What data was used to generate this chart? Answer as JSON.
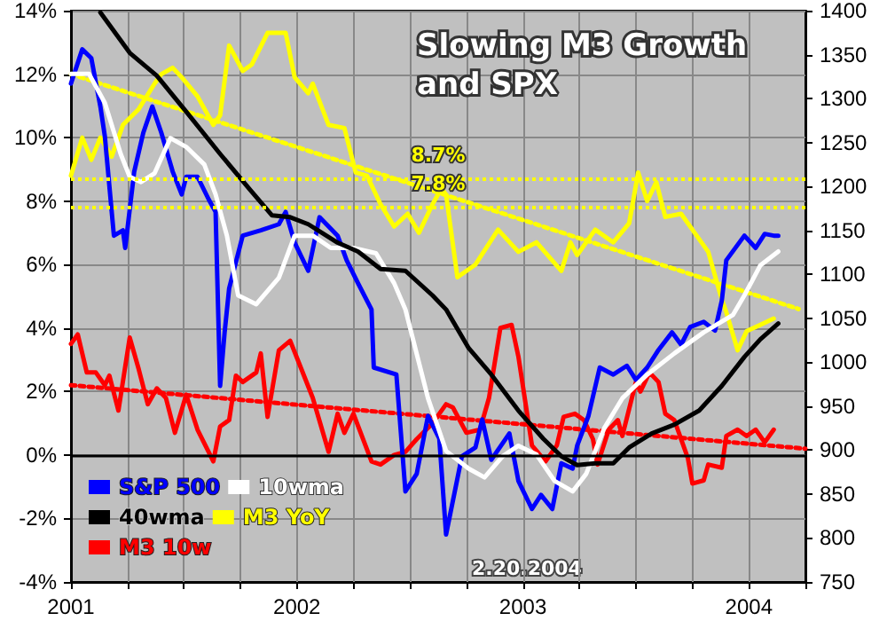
{
  "chart_data": {
    "type": "line",
    "title": "Slowing M3 Growth and SPX",
    "xlim": [
      2001,
      2004.25
    ],
    "xticks": [
      2001,
      {
        "value": 2001.25,
        "label": null
      },
      {
        "value": 2001.5,
        "label": null
      },
      {
        "value": 2001.75,
        "label": null
      },
      2002,
      {
        "value": 2002.25,
        "label": null
      },
      {
        "value": 2002.5,
        "label": null
      },
      {
        "value": 2002.75,
        "label": null
      },
      2003,
      {
        "value": 2003.25,
        "label": null
      },
      {
        "value": 2003.5,
        "label": null
      },
      {
        "value": 2003.75,
        "label": null
      },
      2004,
      {
        "value": 2004.25,
        "label": null
      }
    ],
    "ylim": [
      -4,
      14
    ],
    "yticks": [
      {
        "value": -4,
        "label": "-4%"
      },
      {
        "value": -2,
        "label": "-2%"
      },
      {
        "value": 0,
        "label": "0%"
      },
      {
        "value": 2,
        "label": "2%"
      },
      {
        "value": 4,
        "label": "4%"
      },
      {
        "value": 6,
        "label": "6%"
      },
      {
        "value": 8,
        "label": "8%"
      },
      {
        "value": 10,
        "label": "10%"
      },
      {
        "value": 12,
        "label": "12%"
      },
      {
        "value": 14,
        "label": "14%"
      }
    ],
    "y2lim": [
      750,
      1400
    ],
    "y2ticks": [
      750,
      800,
      850,
      900,
      950,
      1000,
      1050,
      1100,
      1150,
      1200,
      1250,
      1300,
      1350,
      1400
    ],
    "grid": true,
    "legend": "bottom left",
    "marker": "none",
    "line_style": "solid",
    "annotations": [
      "2.20.2004"
    ],
    "ref_lines": [
      {
        "axis": "y",
        "value": 8.7,
        "label": "8.7%",
        "color": "#ffff00",
        "line_style": "dotted"
      },
      {
        "axis": "y",
        "value": 7.8,
        "label": "7.8%",
        "color": "#ffff00",
        "line_style": "dotted"
      },
      {
        "axis": "y",
        "value": 0,
        "label": null,
        "color": "#000000",
        "line_style": "solid"
      }
    ],
    "series": [
      {
        "name": "M3 YoY",
        "color": "#ffff00",
        "x": [
          2001,
          2001.05,
          2001.09,
          2001.13,
          2001.18,
          2001.23,
          2001.3,
          2001.37,
          2001.4,
          2001.45,
          2001.49,
          2001.56,
          2001.63,
          2001.66,
          2001.7,
          2001.76,
          2001.8,
          2001.87,
          2001.95,
          2001.99,
          2002.05,
          2002.07,
          2002.14,
          2002.21,
          2002.26,
          2002.31,
          2002.37,
          2002.43,
          2002.49,
          2002.54,
          2002.6,
          2002.64,
          2002.66,
          2002.71,
          2002.79,
          2002.89,
          2002.98,
          2003.06,
          2003.17,
          2003.21,
          2003.24,
          2003.32,
          2003.4,
          2003.47,
          2003.51,
          2003.55,
          2003.59,
          2003.63,
          2003.7,
          2003.75,
          2003.82,
          2003.88,
          2003.9,
          2003.95,
          2003.99,
          2004.05,
          2004.11
        ],
        "values": [
          8.8,
          10.0,
          9.3,
          10.0,
          9.4,
          10.4,
          10.9,
          11.7,
          12.0,
          12.2,
          11.9,
          11.3,
          10.4,
          10.7,
          12.9,
          12.1,
          12.3,
          13.3,
          13.3,
          11.9,
          11.4,
          11.7,
          10.4,
          10.3,
          8.9,
          8.8,
          7.9,
          7.2,
          7.6,
          7.0,
          7.9,
          8.4,
          8.2,
          5.6,
          6.0,
          7.1,
          6.4,
          6.7,
          5.8,
          6.7,
          6.3,
          7.1,
          6.7,
          7.3,
          8.9,
          8.0,
          8.6,
          7.5,
          7.6,
          7.1,
          6.4,
          4.9,
          4.5,
          3.3,
          3.9,
          4.1,
          4.3
        ]
      },
      {
        "name": "M3 10w",
        "color": "#ff0000",
        "x": [
          2001,
          2001.03,
          2001.07,
          2001.11,
          2001.15,
          2001.17,
          2001.21,
          2001.26,
          2001.3,
          2001.34,
          2001.38,
          2001.42,
          2001.46,
          2001.51,
          2001.56,
          2001.63,
          2001.66,
          2001.7,
          2001.73,
          2001.76,
          2001.82,
          2001.84,
          2001.87,
          2001.92,
          2001.97,
          2002.02,
          2002.07,
          2002.14,
          2002.18,
          2002.21,
          2002.25,
          2002.33,
          2002.37,
          2002.43,
          2002.48,
          2002.53,
          2002.6,
          2002.66,
          2002.69,
          2002.75,
          2002.81,
          2002.85,
          2002.9,
          2002.95,
          2002.98,
          2003.04,
          2003.1,
          2003.15,
          2003.18,
          2003.23,
          2003.27,
          2003.31,
          2003.33,
          2003.38,
          2003.42,
          2003.44,
          2003.5,
          2003.52,
          2003.56,
          2003.6,
          2003.63,
          2003.67,
          2003.73,
          2003.75,
          2003.8,
          2003.82,
          2003.88,
          2003.9,
          2003.95,
          2003.99,
          2004.03,
          2004.07,
          2004.11
        ],
        "values": [
          3.5,
          3.8,
          2.6,
          2.6,
          2.2,
          2.5,
          1.4,
          3.7,
          2.7,
          1.6,
          2.1,
          1.8,
          0.7,
          1.9,
          0.8,
          -0.2,
          0.9,
          1.1,
          2.5,
          2.3,
          2.6,
          3.2,
          1.2,
          3.3,
          3.6,
          2.7,
          1.8,
          0.1,
          1.3,
          0.7,
          1.3,
          -0.2,
          -0.3,
          0.0,
          0.1,
          0.5,
          1.0,
          1.6,
          1.5,
          0.7,
          0.8,
          1.8,
          4.0,
          4.1,
          3.1,
          0.3,
          -0.2,
          0.3,
          1.2,
          1.3,
          1.1,
          0.5,
          -0.3,
          0.8,
          1.1,
          0.6,
          2.3,
          2.0,
          2.6,
          2.3,
          1.3,
          1.1,
          -0.1,
          -0.9,
          -0.8,
          -0.3,
          -0.4,
          0.6,
          0.8,
          0.6,
          0.8,
          0.4,
          0.8
        ]
      },
      {
        "name": "S&P 500",
        "color": "#0000ff",
        "axis": "y2",
        "x": [
          2001,
          2001.05,
          2001.09,
          2001.13,
          2001.15,
          2001.19,
          2001.23,
          2001.24,
          2001.28,
          2001.32,
          2001.36,
          2001.4,
          2001.45,
          2001.49,
          2001.51,
          2001.56,
          2001.61,
          2001.64,
          2001.66,
          2001.68,
          2001.7,
          2001.76,
          2001.84,
          2001.92,
          2001.95,
          2001.99,
          2002.05,
          2002.1,
          2002.18,
          2002.22,
          2002.27,
          2002.33,
          2002.34,
          2002.44,
          2002.48,
          2002.53,
          2002.58,
          2002.63,
          2002.66,
          2002.73,
          2002.79,
          2002.82,
          2002.86,
          2002.94,
          2002.98,
          2003.04,
          2003.08,
          2003.13,
          2003.17,
          2003.22,
          2003.24,
          2003.29,
          2003.34,
          2003.4,
          2003.46,
          2003.5,
          2003.55,
          2003.6,
          2003.66,
          2003.7,
          2003.74,
          2003.8,
          2003.85,
          2003.88,
          2003.9,
          2003.98,
          2004.03,
          2004.07,
          2004.11,
          2004.13
        ],
        "values": [
          1317,
          1356,
          1346,
          1291,
          1257,
          1144,
          1150,
          1130,
          1217,
          1261,
          1291,
          1261,
          1217,
          1191,
          1211,
          1211,
          1185,
          1171,
          973,
          1034,
          1084,
          1144,
          1150,
          1157,
          1171,
          1136,
          1104,
          1165,
          1144,
          1116,
          1090,
          1060,
          994,
          986,
          853,
          873,
          939,
          913,
          804,
          893,
          903,
          935,
          889,
          919,
          865,
          833,
          849,
          833,
          885,
          879,
          905,
          939,
          994,
          986,
          996,
          980,
          994,
          1014,
          1034,
          1020,
          1040,
          1046,
          1036,
          1070,
          1116,
          1144,
          1130,
          1146,
          1144,
          1144
        ]
      },
      {
        "name": "10wma",
        "color": "#ffffff",
        "axis": "y2",
        "x": [
          2001,
          2001.08,
          2001.15,
          2001.22,
          2001.26,
          2001.31,
          2001.37,
          2001.44,
          2001.51,
          2001.59,
          2001.64,
          2001.69,
          2001.74,
          2001.82,
          2001.92,
          2001.99,
          2002.07,
          2002.15,
          2002.25,
          2002.35,
          2002.43,
          2002.48,
          2002.58,
          2002.66,
          2002.76,
          2002.83,
          2002.91,
          2002.98,
          2003.06,
          2003.14,
          2003.22,
          2003.28,
          2003.36,
          2003.44,
          2003.55,
          2003.67,
          2003.8,
          2003.93,
          2003.98,
          2004.05,
          2004.13
        ],
        "values": [
          1328,
          1328,
          1295,
          1237,
          1211,
          1205,
          1215,
          1255,
          1245,
          1225,
          1191,
          1144,
          1076,
          1066,
          1096,
          1144,
          1144,
          1130,
          1130,
          1124,
          1090,
          1060,
          959,
          899,
          879,
          869,
          893,
          905,
          895,
          865,
          853,
          873,
          925,
          959,
          986,
          1010,
          1034,
          1054,
          1076,
          1110,
          1126
        ]
      },
      {
        "name": "40wma",
        "color": "#000000",
        "axis": "y2",
        "x": [
          2001.13,
          2001.26,
          2001.38,
          2001.51,
          2001.66,
          2001.79,
          2001.89,
          2001.97,
          2002.05,
          2002.18,
          2002.27,
          2002.37,
          2002.48,
          2002.6,
          2002.66,
          2002.76,
          2002.86,
          2002.98,
          2003.09,
          2003.17,
          2003.24,
          2003.32,
          2003.4,
          2003.47,
          2003.57,
          2003.67,
          2003.78,
          2003.88,
          2003.98,
          2004.05,
          2004.13
        ],
        "values": [
          1398,
          1352,
          1326,
          1285,
          1237,
          1197,
          1167,
          1165,
          1157,
          1136,
          1126,
          1106,
          1104,
          1076,
          1060,
          1016,
          986,
          945,
          913,
          893,
          883,
          885,
          885,
          903,
          919,
          929,
          945,
          973,
          1006,
          1026,
          1044
        ]
      },
      {
        "type": "line",
        "color": "#ffff00",
        "line_style": "dotted",
        "x": [
          2001,
          2004.22
        ],
        "values": [
          12.0,
          4.6
        ]
      },
      {
        "type": "line",
        "color": "#ff0000",
        "line_style": "dotted",
        "x": [
          2001,
          2004.25
        ],
        "values": [
          2.2,
          0.2
        ]
      }
    ]
  }
}
